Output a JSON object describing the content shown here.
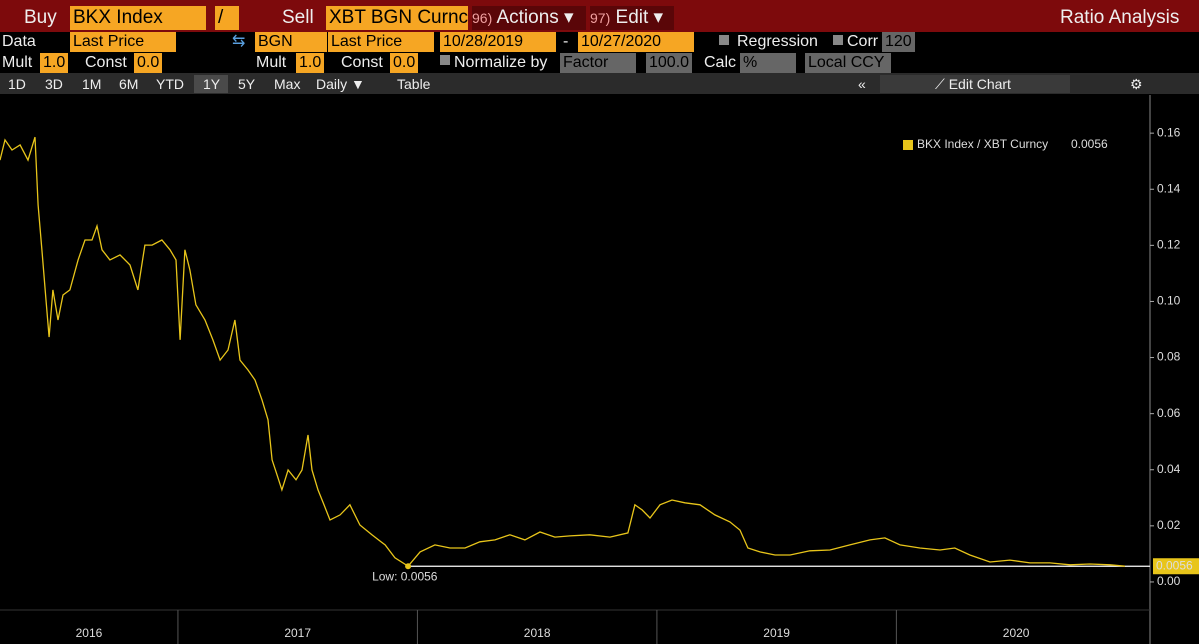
{
  "toolbar": {
    "buy": "Buy",
    "buy_ticker": "BKX Index",
    "op": "/",
    "sell": "Sell",
    "sell_ticker": "XBT BGN Curnc",
    "actions_num": "96)",
    "actions": "Actions",
    "edit_num": "97)",
    "edit": "Edit",
    "title": "Ratio Analysis",
    "data": "Data",
    "data_field": "Last Price",
    "source": "BGN",
    "field2": "Last Price",
    "start": "10/28/2019",
    "dash": "-",
    "end": "10/27/2020",
    "regression": "Regression",
    "corr": "Corr",
    "corr_value": "120",
    "mult": "Mult",
    "mult_value": "1.0",
    "const": "Const",
    "const_value": "0.0",
    "mult2": "Mult",
    "mult2_value": "1.0",
    "const2": "Const",
    "const2_value": "0.0",
    "normalize": "Normalize by",
    "factor": "Factor",
    "factor_value": "100.0",
    "calc": "Calc",
    "calc_value": "%",
    "ccy": "Local CCY",
    "periods": [
      "1D",
      "3D",
      "1M",
      "6M",
      "YTD",
      "1Y",
      "5Y",
      "Max"
    ],
    "freq": "Daily ▼",
    "table": "Table",
    "edit_chart": "Edit Chart"
  },
  "chart_data": {
    "type": "line",
    "x": [
      2016.257,
      2016.278,
      2016.307,
      2016.341,
      2016.374,
      2016.403,
      2016.416,
      2016.432,
      2016.449,
      2016.462,
      2016.478,
      2016.499,
      2016.52,
      2016.549,
      2016.583,
      2016.612,
      2016.641,
      2016.662,
      2016.683,
      2016.716,
      2016.758,
      2016.8,
      2016.833,
      2016.862,
      2016.892,
      2016.933,
      2016.967,
      2016.992,
      2017.009,
      2017.029,
      2017.05,
      2017.075,
      2017.113,
      2017.146,
      2017.176,
      2017.209,
      2017.238,
      2017.259,
      2017.292,
      2017.322,
      2017.351,
      2017.376,
      2017.393,
      2017.414,
      2017.434,
      2017.46,
      2017.493,
      2017.518,
      2017.543,
      2017.56,
      2017.585,
      2017.61,
      2017.635,
      2017.677,
      2017.718,
      2017.76,
      2017.81,
      2017.865,
      2017.906,
      2017.961,
      2018.011,
      2018.073,
      2018.136,
      2018.199,
      2018.261,
      2018.324,
      2018.386,
      2018.449,
      2018.512,
      2018.574,
      2018.637,
      2018.72,
      2018.804,
      2018.879,
      2018.908,
      2018.938,
      2018.971,
      2019.013,
      2019.063,
      2019.117,
      2019.18,
      2019.242,
      2019.305,
      2019.347,
      2019.38,
      2019.43,
      2019.493,
      2019.556,
      2019.639,
      2019.723,
      2019.806,
      2019.89,
      2019.952,
      2020.015,
      2020.098,
      2020.182,
      2020.244,
      2020.307,
      2020.391,
      2020.474,
      2020.558,
      2020.641,
      2020.725,
      2020.808,
      2020.892,
      2020.954
    ],
    "series": [
      {
        "name": "BKX Index / XBT Curncy",
        "color": "#e8c51a",
        "values": [
          0.1504,
          0.1576,
          0.154,
          0.1558,
          0.1504,
          0.1586,
          0.1344,
          0.1184,
          0.1005,
          0.0873,
          0.1041,
          0.0934,
          0.1023,
          0.1041,
          0.1148,
          0.1219,
          0.1219,
          0.1269,
          0.1184,
          0.1148,
          0.1166,
          0.113,
          0.1041,
          0.1201,
          0.1201,
          0.1219,
          0.1184,
          0.1148,
          0.0863,
          0.1184,
          0.1112,
          0.0988,
          0.0934,
          0.0863,
          0.0791,
          0.0827,
          0.0934,
          0.0791,
          0.0756,
          0.072,
          0.0649,
          0.0578,
          0.0435,
          0.0381,
          0.0328,
          0.0399,
          0.0364,
          0.0399,
          0.0524,
          0.0399,
          0.0328,
          0.0275,
          0.0221,
          0.0239,
          0.0275,
          0.0203,
          0.0168,
          0.0132,
          0.0086,
          0.0056,
          0.0107,
          0.0132,
          0.0121,
          0.0121,
          0.0143,
          0.015,
          0.0168,
          0.015,
          0.0178,
          0.016,
          0.0164,
          0.0168,
          0.016,
          0.0175,
          0.0275,
          0.0257,
          0.0228,
          0.0275,
          0.0292,
          0.0282,
          0.0275,
          0.0239,
          0.0214,
          0.0185,
          0.0121,
          0.0107,
          0.0096,
          0.0096,
          0.0111,
          0.0114,
          0.0132,
          0.015,
          0.0157,
          0.0132,
          0.0121,
          0.0114,
          0.0121,
          0.0096,
          0.0071,
          0.0078,
          0.0068,
          0.0068,
          0.0061,
          0.0064,
          0.0061,
          0.0056
        ]
      }
    ],
    "last_value": {
      "value": 0.0056,
      "label": "0.0056"
    },
    "annotations": [
      {
        "text": "Low: 0.0056",
        "x": 2017.961,
        "y": 0.0056
      }
    ],
    "xlim": [
      2016.257,
      2021.059
    ],
    "xticks": [
      {
        "value": 2016,
        "label": "2016"
      },
      {
        "value": 2017,
        "label": "2017"
      },
      {
        "value": 2018,
        "label": "2018"
      },
      {
        "value": 2019,
        "label": "2019"
      },
      {
        "value": 2020,
        "label": "2020"
      }
    ],
    "ylim": [
      -0.01,
      0.1736
    ],
    "yticks": [
      {
        "value": 0,
        "label": "0.00"
      },
      0.02,
      0.04,
      0.06,
      0.08,
      {
        "value": 0.1,
        "label": "0.10"
      },
      0.12,
      0.14,
      0.16
    ]
  }
}
